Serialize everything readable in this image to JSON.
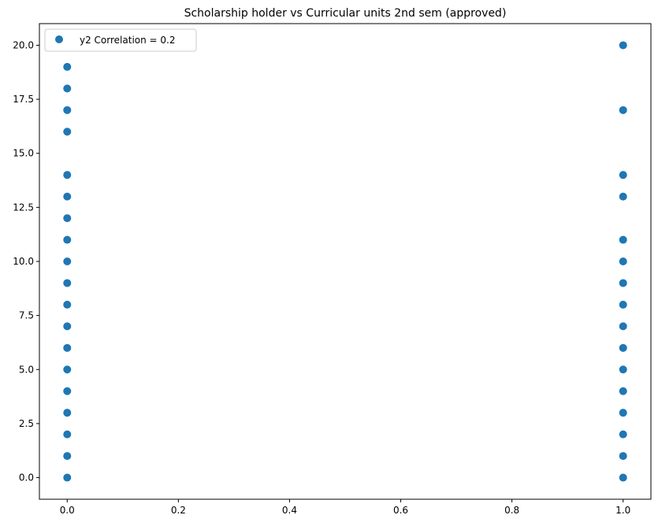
{
  "chart_data": {
    "type": "scatter",
    "title": "Scholarship holder vs Curricular units 2nd sem (approved)",
    "xlabel": "",
    "ylabel": "",
    "xlim": [
      -0.05,
      1.05
    ],
    "ylim": [
      -1.0,
      21.0
    ],
    "x_ticks": [
      "0.0",
      "0.2",
      "0.4",
      "0.6",
      "0.8",
      "1.0"
    ],
    "y_ticks": [
      "0.0",
      "2.5",
      "5.0",
      "7.5",
      "10.0",
      "12.5",
      "15.0",
      "17.5",
      "20.0"
    ],
    "grid": false,
    "legend_position": "top-left",
    "marker_color": "#1f77b4",
    "series": [
      {
        "name": "y2 Correlation = 0.2",
        "points": [
          {
            "x": 0,
            "y": 0
          },
          {
            "x": 0,
            "y": 1
          },
          {
            "x": 0,
            "y": 2
          },
          {
            "x": 0,
            "y": 3
          },
          {
            "x": 0,
            "y": 4
          },
          {
            "x": 0,
            "y": 5
          },
          {
            "x": 0,
            "y": 6
          },
          {
            "x": 0,
            "y": 7
          },
          {
            "x": 0,
            "y": 8
          },
          {
            "x": 0,
            "y": 9
          },
          {
            "x": 0,
            "y": 10
          },
          {
            "x": 0,
            "y": 11
          },
          {
            "x": 0,
            "y": 12
          },
          {
            "x": 0,
            "y": 13
          },
          {
            "x": 0,
            "y": 14
          },
          {
            "x": 0,
            "y": 16
          },
          {
            "x": 0,
            "y": 17
          },
          {
            "x": 0,
            "y": 18
          },
          {
            "x": 0,
            "y": 19
          },
          {
            "x": 1,
            "y": 0
          },
          {
            "x": 1,
            "y": 1
          },
          {
            "x": 1,
            "y": 2
          },
          {
            "x": 1,
            "y": 3
          },
          {
            "x": 1,
            "y": 4
          },
          {
            "x": 1,
            "y": 5
          },
          {
            "x": 1,
            "y": 6
          },
          {
            "x": 1,
            "y": 7
          },
          {
            "x": 1,
            "y": 8
          },
          {
            "x": 1,
            "y": 9
          },
          {
            "x": 1,
            "y": 10
          },
          {
            "x": 1,
            "y": 11
          },
          {
            "x": 1,
            "y": 13
          },
          {
            "x": 1,
            "y": 14
          },
          {
            "x": 1,
            "y": 17
          },
          {
            "x": 1,
            "y": 20
          }
        ]
      }
    ]
  }
}
